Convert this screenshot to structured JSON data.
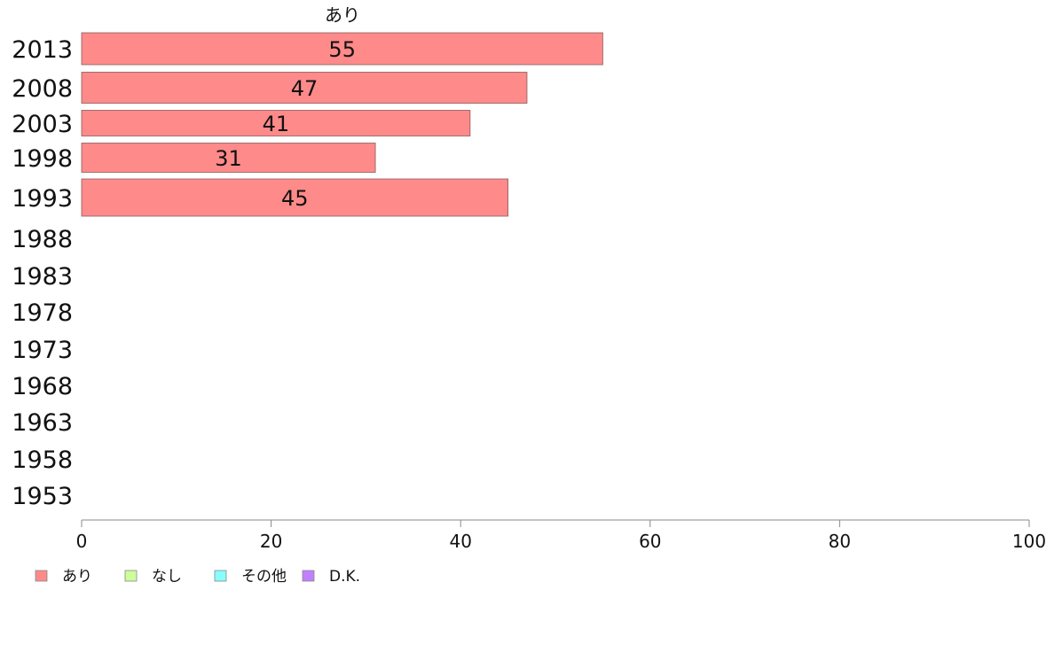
{
  "chart_data": {
    "type": "bar",
    "orientation": "horizontal",
    "title": "",
    "column_title": "あり",
    "categories": [
      "2013",
      "2008",
      "2003",
      "1998",
      "1993",
      "1988",
      "1983",
      "1978",
      "1973",
      "1968",
      "1963",
      "1958",
      "1953"
    ],
    "series": [
      {
        "name": "あり",
        "color": "#ff8a8a",
        "values": [
          55,
          47,
          41,
          31,
          45,
          null,
          null,
          null,
          null,
          null,
          null,
          null,
          null
        ]
      }
    ],
    "data_labels": [
      "55",
      "47",
      "41",
      "31",
      "45"
    ],
    "xlim": [
      0,
      100
    ],
    "xticks": [
      0,
      20,
      40,
      60,
      80,
      100
    ],
    "grid": false,
    "legend_position": "bottom-left",
    "legend": [
      {
        "label": "あり",
        "color": "#ff8a8a"
      },
      {
        "label": "なし",
        "color": "#ccff99"
      },
      {
        "label": "その他",
        "color": "#88ffff"
      },
      {
        "label": "D.K.",
        "color": "#c080ff"
      }
    ]
  }
}
